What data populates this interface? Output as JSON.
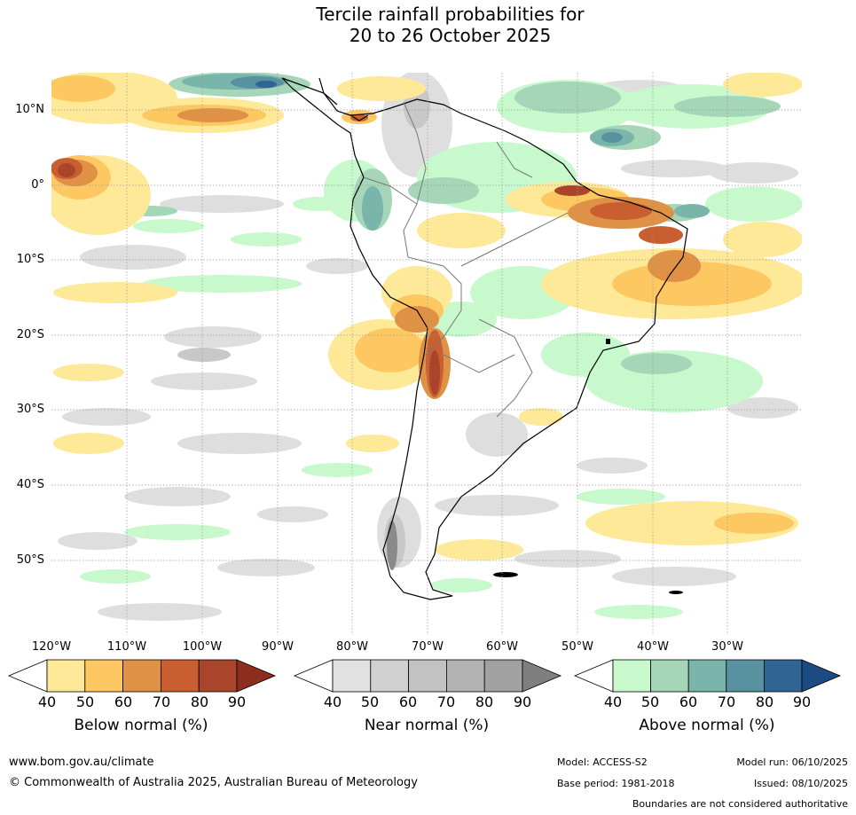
{
  "title": {
    "line1": "Tercile rainfall probabilities for",
    "line2": "20 to 26 October 2025"
  },
  "latitude_ticks": [
    "10°N",
    "0°",
    "10°S",
    "20°S",
    "30°S",
    "40°S",
    "50°S"
  ],
  "longitude_ticks": [
    "120°W",
    "110°W",
    "100°W",
    "90°W",
    "80°W",
    "70°W",
    "60°W",
    "50°W",
    "40°W",
    "30°W"
  ],
  "legends": {
    "below": {
      "title": "Below normal (%)",
      "labels": [
        "40",
        "50",
        "60",
        "70",
        "80",
        "90"
      ],
      "colors": [
        "#ffffff",
        "#fee999",
        "#fdc761",
        "#df9245",
        "#c95f31",
        "#a8452a",
        "#8c2d1d"
      ]
    },
    "near": {
      "title": "Near normal (%)",
      "labels": [
        "40",
        "50",
        "60",
        "70",
        "80",
        "90"
      ],
      "colors": [
        "#ffffff",
        "#e1e1e1",
        "#d1d1d1",
        "#c2c2c2",
        "#b3b3b3",
        "#a1a1a1",
        "#7f7f7f"
      ]
    },
    "above": {
      "title": "Above normal (%)",
      "labels": [
        "40",
        "50",
        "60",
        "70",
        "80",
        "90"
      ],
      "colors": [
        "#ffffff",
        "#c7f9cd",
        "#a5d6b8",
        "#79b5ab",
        "#5891a0",
        "#306593",
        "#1c4a82"
      ]
    }
  },
  "footer": {
    "website": "www.bom.gov.au/climate",
    "copyright": "© Commonwealth of Australia 2025, Australian Bureau of Meteorology",
    "model": "Model: ACCESS-S2",
    "base_period": "Base period: 1981-2018",
    "model_run": "Model run: 06/10/2025",
    "issued": "Issued: 08/10/2025",
    "disclaimer": "Boundaries are not considered authoritative"
  }
}
